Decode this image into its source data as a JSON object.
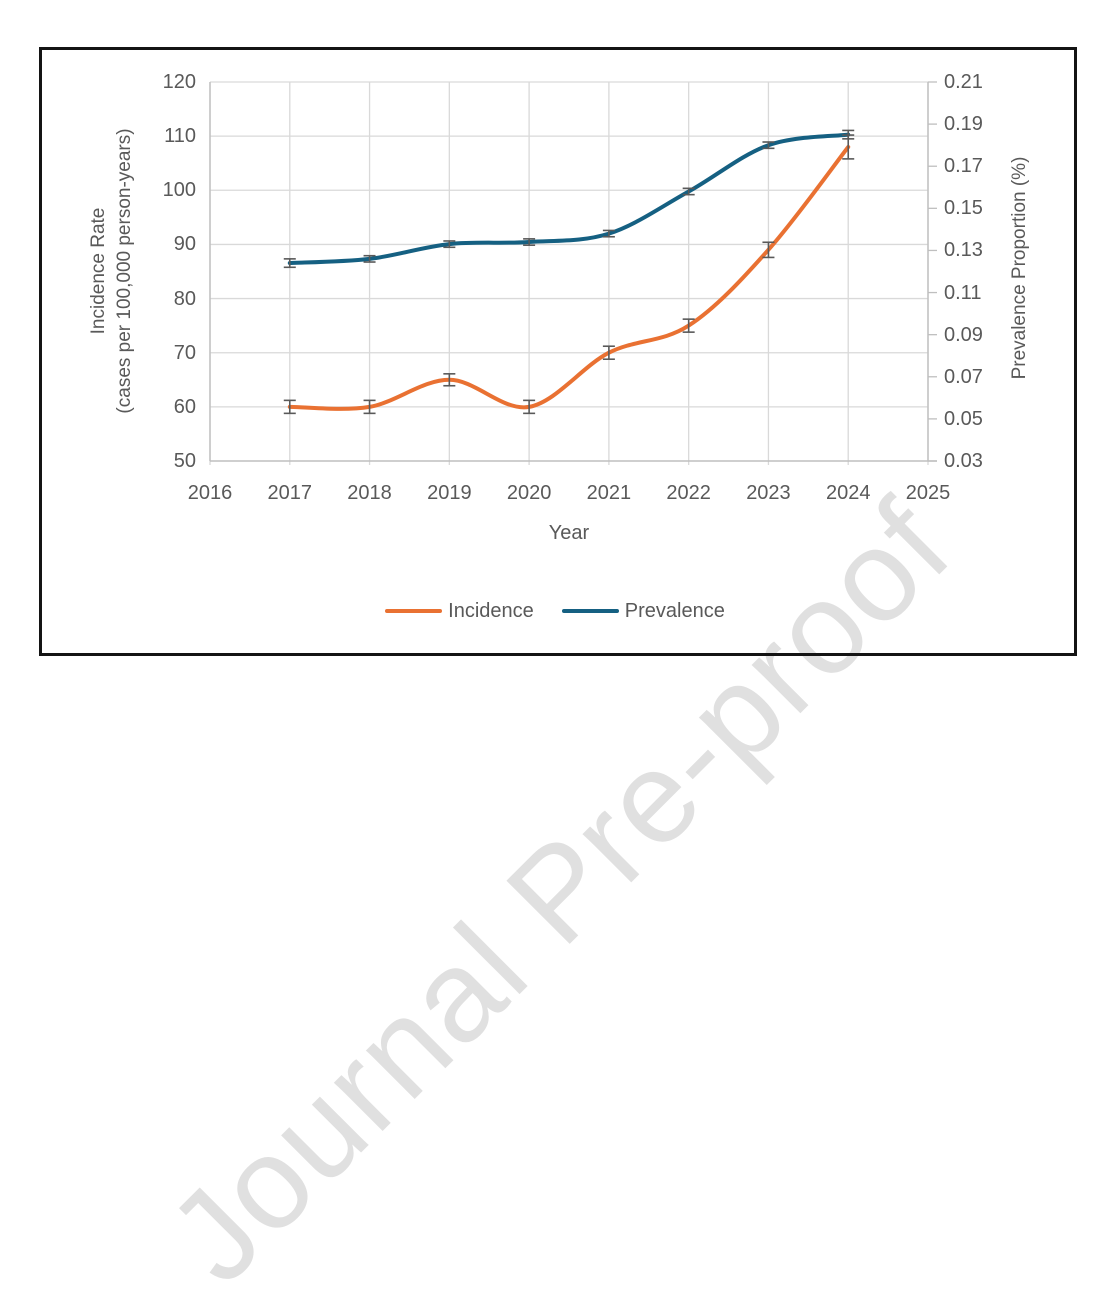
{
  "watermark": {
    "text": "Journal Pre-proof"
  },
  "chart_data": {
    "type": "line",
    "title": "",
    "x": [
      2017,
      2018,
      2019,
      2020,
      2021,
      2022,
      2023,
      2024
    ],
    "series": [
      {
        "name": "Incidence",
        "axis": "left",
        "color": "#E97132",
        "smooth": true,
        "values": [
          60,
          60,
          65,
          60,
          70,
          75,
          89,
          108
        ],
        "errors": [
          1.2,
          1.2,
          1.1,
          1.2,
          1.2,
          1.2,
          1.4,
          2.2
        ]
      },
      {
        "name": "Prevalence",
        "axis": "right",
        "color": "#156082",
        "smooth": true,
        "values": [
          0.124,
          0.126,
          0.133,
          0.134,
          0.138,
          0.158,
          0.18,
          0.185
        ],
        "errors": [
          0.002,
          0.0015,
          0.0015,
          0.0015,
          0.0015,
          0.0015,
          0.0015,
          0.002
        ]
      }
    ],
    "x_axis": {
      "title": "Year",
      "ticks": [
        2016,
        2017,
        2018,
        2019,
        2020,
        2021,
        2022,
        2023,
        2024,
        2025
      ],
      "range": [
        2016,
        2025
      ]
    },
    "y_left": {
      "title_line1": "Incidence Rate",
      "title_line2": "(cases per 100,000 person-years)",
      "min": 50,
      "max": 120,
      "step": 10,
      "ticks": [
        50,
        60,
        70,
        80,
        90,
        100,
        110,
        120
      ]
    },
    "y_right": {
      "title": "Prevalence Proportion (%)",
      "min": 0.03,
      "max": 0.21,
      "step": 0.02,
      "tick_labels": [
        "0.03",
        "0.05",
        "0.07",
        "0.09",
        "0.11",
        "0.13",
        "0.15",
        "0.17",
        "0.19",
        "0.21"
      ]
    },
    "legend": {
      "position": "bottom",
      "entries": [
        "Incidence",
        "Prevalence"
      ]
    },
    "grid": {
      "horizontal": true,
      "vertical": true
    },
    "error_bars": true,
    "colors": {
      "gridline": "#d9d9d9",
      "axis_line": "#bfbfbf",
      "tick_text": "#595959",
      "error_bar": "#595959",
      "frame_border": "#141414",
      "watermark": "#e0e0e0"
    }
  }
}
